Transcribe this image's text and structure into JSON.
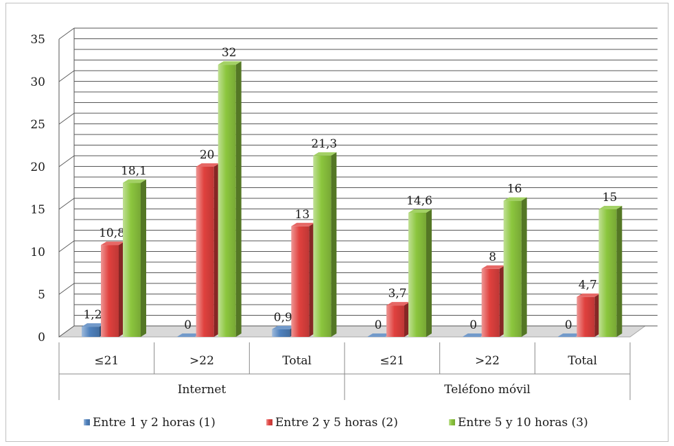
{
  "chart_data": {
    "type": "bar",
    "groups": [
      "Internet",
      "Teléfono móvil"
    ],
    "categories": [
      "≤21",
      ">22",
      "Total",
      "≤21",
      ">22",
      "Total"
    ],
    "category_group": [
      0,
      0,
      0,
      1,
      1,
      1
    ],
    "series": [
      {
        "name": "Entre 1 y 2 horas (1)",
        "values": [
          1.2,
          0,
          0.9,
          0,
          0,
          0
        ],
        "labels": [
          "1,2",
          "0",
          "0,9",
          "0",
          "0",
          "0"
        ],
        "color": "#4f81bd"
      },
      {
        "name": "Entre 2 y 5 horas (2)",
        "values": [
          10.8,
          20,
          13,
          3.7,
          8,
          4.7
        ],
        "labels": [
          "10,8",
          "20",
          "13",
          "3,7",
          "8",
          "4,7"
        ],
        "color": "#e0413e"
      },
      {
        "name": "Entre 5 y 10 horas (3)",
        "values": [
          18.1,
          32,
          21.3,
          14.6,
          16,
          15
        ],
        "labels": [
          "18,1",
          "32",
          "21,3",
          "14,6",
          "16",
          "15"
        ],
        "color": "#8cc63e"
      }
    ],
    "ylim": [
      0,
      35
    ],
    "yticks": [
      "0",
      "5",
      "10",
      "15",
      "20",
      "25",
      "30",
      "35"
    ],
    "grid": true,
    "legend_position": "bottom"
  }
}
